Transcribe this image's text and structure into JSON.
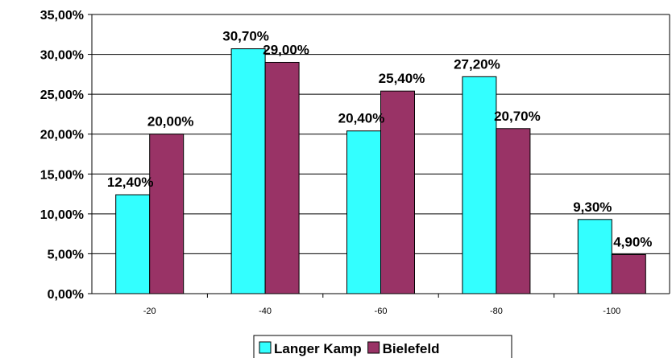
{
  "chart_data": {
    "type": "bar",
    "categories": [
      "-20",
      "-40",
      "-60",
      "-80",
      "-100"
    ],
    "series": [
      {
        "name": "Langer Kamp",
        "color": "#33FFFF",
        "values": [
          12.4,
          30.7,
          20.4,
          27.2,
          9.3
        ],
        "labels": [
          "12,40%",
          "30,70%",
          "20,40%",
          "27,20%",
          "9,30%"
        ]
      },
      {
        "name": "Bielefeld",
        "color": "#993366",
        "values": [
          20.0,
          29.0,
          25.4,
          20.7,
          4.9
        ],
        "labels": [
          "20,00%",
          "29,00%",
          "25,40%",
          "20,70%",
          "4,90%"
        ]
      }
    ],
    "ylim": [
      0,
      35
    ],
    "yticks": [
      "0,00%",
      "5,00%",
      "10,00%",
      "15,00%",
      "20,00%",
      "25,00%",
      "30,00%",
      "35,00%"
    ],
    "grid": true,
    "legend": "bottom",
    "title": "",
    "xlabel": "",
    "ylabel": ""
  }
}
